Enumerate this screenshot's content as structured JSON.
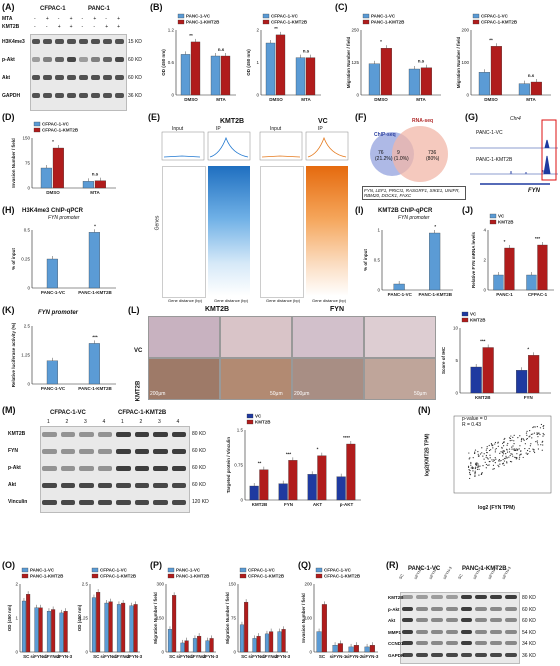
{
  "colors": {
    "blue": "#5b9bd5",
    "red": "#b01c1c",
    "orange": "#e57a1e",
    "navy": "#1f3aa0"
  },
  "panels": {
    "A": "(A)",
    "B": "(B)",
    "C": "(C)",
    "D": "(D)",
    "E": "(E)",
    "F": "(F)",
    "G": "(G)",
    "H": "(H)",
    "I": "(I)",
    "J": "(J)",
    "K": "(K)",
    "L": "(L)",
    "M": "(M)",
    "N": "(N)",
    "O": "(O)",
    "P": "(P)",
    "Q": "(Q)",
    "R": "(R)"
  },
  "A": {
    "cell1": "CFPAC-1",
    "cell2": "PANC-1",
    "mta": "MTA",
    "kmt2b": "KMT2B",
    "signs": [
      "-",
      "+",
      "-",
      "+",
      "-",
      "+",
      "-",
      "+"
    ],
    "signs2": [
      "-",
      "-",
      "+",
      "+",
      "-",
      "-",
      "+",
      "+"
    ],
    "rows": [
      "H3K4me3",
      "p-Akt",
      "Akt",
      "GAPDH"
    ],
    "kd": [
      "15 KD",
      "60 KD",
      "60 KD",
      "36 KD"
    ]
  },
  "B": {
    "leg1": "PANC-1-VC",
    "leg2": "PANC-1-KMT2B",
    "leg3": "CFPAC-1-VC",
    "leg4": "CFPAC-1-KMT2B",
    "ylabel": "OD (450 nm)",
    "x": [
      "DMSO",
      "MTA"
    ],
    "sig": [
      "**",
      "n.s",
      "**",
      "n.s"
    ]
  },
  "C": {
    "leg1": "PANC-1-VC",
    "leg2": "PANC-1-KMT2B",
    "leg3": "CFPAC-1-VC",
    "leg4": "CFPAC-1-KMT2B",
    "ylabel": "Migration Number / field",
    "x": [
      "DMSO",
      "MTA"
    ],
    "sig": [
      "*",
      "n.s",
      "**",
      "n.s"
    ]
  },
  "D": {
    "leg1": "CFPAC-1-VC",
    "leg2": "CFPAC-1-KMT2B",
    "ylabel": "Invasion Number / field",
    "x": [
      "DMSO",
      "MTA"
    ],
    "sig": [
      "*",
      "n.s"
    ]
  },
  "E": {
    "t1": "KMT2B",
    "t2": "VC",
    "input": "Input",
    "ip": "IP",
    "ylab": "Genes",
    "xt": [
      "-1.0",
      "TSS",
      "1.0kb"
    ],
    "foot": "Gene distance (bp)"
  },
  "F": {
    "chip": "ChIP-seq",
    "rna": "RNA-seq",
    "n1": "76",
    "p1": "(21.2%)",
    "n2": "9",
    "p2": "(1.0%)",
    "n3": "736",
    "p3": "(80%)",
    "genes": "FYN, LEF1, PRICI1, RASGRF1, SIKE1, UNIFR, RBM20, DOCK1, FAXC"
  },
  "G": {
    "top": "Chr4",
    "r1": "PANC-1-VC",
    "r2": "PANC-1-KMT2B",
    "gene": "FYN"
  },
  "H": {
    "title": "H3K4me3 ChIP-qPCR",
    "sub": "FYN promoter",
    "ylabel": "% of input",
    "x": [
      "PANC-1-VC",
      "PANC-1-KMT2B"
    ],
    "sig": "*"
  },
  "I": {
    "title": "KMT2B ChIP-qPCR",
    "sub": "FYN promoter",
    "ylabel": "% of input",
    "x": [
      "PANC-1-VC",
      "PANC-1-KMT2B"
    ],
    "sig": "*"
  },
  "J": {
    "leg1": "VC",
    "leg2": "KMT2B",
    "ylabel": "Relative FYN mRNA levels",
    "x": [
      "PANC-1",
      "CFPAC-1"
    ],
    "sig": [
      "*",
      "***"
    ]
  },
  "K": {
    "title": "FYN promoter",
    "ylabel": "Relative luciferase activity (%)",
    "x": [
      "PANC-1-VC",
      "PANC-1-KMT2B"
    ],
    "sig": "***"
  },
  "L": {
    "t1": "KMT2B",
    "t2": "FYN",
    "r1": "VC",
    "r2": "KMT2B",
    "s1": "200μm",
    "s2": "50μm",
    "s3": "200μm",
    "s4": "50μm",
    "leg1": "VC",
    "leg2": "KMT2B",
    "ylabel": "Score of IHC",
    "x": [
      "KMT2B",
      "FYN"
    ],
    "sig": [
      "***",
      "*"
    ]
  },
  "M": {
    "g1": "CFPAC-1-VC",
    "g2": "CFPAC-1-KMT2B",
    "lanes": [
      "1",
      "2",
      "3",
      "4",
      "1",
      "2",
      "3",
      "4"
    ],
    "rows": [
      "KMT2B",
      "FYN",
      "p-Akt",
      "Akt",
      "Vinculin"
    ],
    "kd": [
      "80 KD",
      "60 KD",
      "60 KD",
      "60 KD",
      "120 KD"
    ],
    "leg1": "VC",
    "leg2": "KMT2B",
    "ylabel": "Targeted protein / Vinculin",
    "x": [
      "KMT2B",
      "FYN",
      "AKT",
      "p-AKT"
    ],
    "sig": [
      "**",
      "***",
      "*",
      "****"
    ]
  },
  "N": {
    "p": "p-value = 0",
    "r": "R = 0.43",
    "ylabel": "log2(KMT2B TPM)",
    "xlabel": "log2 (FYN TPM)"
  },
  "O": {
    "leg1": "PANC-1-VC",
    "leg2": "PANC-1-KMT2B",
    "leg3": "CFPAC-1-VC",
    "leg4": "CFPAC-1-KMT2B",
    "ylabel": "OD (450 nm)",
    "x": [
      "SC",
      "siFYN-1",
      "siFYN-2",
      "siFYN-3"
    ]
  },
  "P": {
    "leg1": "PANC-1-VC",
    "leg2": "PANC-1-KMT2B",
    "leg3": "CFPAC-1-VC",
    "leg4": "CFPAC-1-KMT2B",
    "ylabel": "Migration Number / field",
    "x": [
      "SC",
      "siFYN-1",
      "siFYN-2",
      "siFYN-3"
    ]
  },
  "Q": {
    "leg1": "CFPAC-1-VC",
    "leg2": "CFPAC-1-KMT2B",
    "ylabel": "Invasion Number / field",
    "x": [
      "SC",
      "siFYN-1",
      "siFYN-2",
      "siFYN-3"
    ]
  },
  "R": {
    "g1": "PANC-1-VC",
    "g2": "PANC-1-KMT2B",
    "lanes": [
      "SC",
      "siFYN-1",
      "siFYN-2",
      "siFYN-3",
      "SC",
      "siFYN-1",
      "siFYN-2",
      "siFYN-3"
    ],
    "rows": [
      "KMT2B",
      "p-Akt",
      "Akt",
      "MMP1",
      "CCND1",
      "GAPDH"
    ],
    "kd": [
      "80 KD",
      "60 KD",
      "60 KD",
      "54 KD",
      "34 KD",
      "36 KD"
    ]
  },
  "chart_data": [
    {
      "type": "bar",
      "panel": "B-left",
      "categories": [
        "DMSO",
        "MTA"
      ],
      "series": [
        {
          "name": "PANC-1-VC",
          "values": [
            0.75,
            0.72
          ]
        },
        {
          "name": "PANC-1-KMT2B",
          "values": [
            0.98,
            0.72
          ]
        }
      ],
      "ylim": [
        0,
        1.2
      ]
    },
    {
      "type": "bar",
      "panel": "B-right",
      "categories": [
        "DMSO",
        "MTA"
      ],
      "series": [
        {
          "name": "CFPAC-1-VC",
          "values": [
            1.6,
            1.15
          ]
        },
        {
          "name": "CFPAC-1-KMT2B",
          "values": [
            1.85,
            1.15
          ]
        }
      ],
      "ylim": [
        0,
        2.0
      ]
    },
    {
      "type": "bar",
      "panel": "C-left",
      "categories": [
        "DMSO",
        "MTA"
      ],
      "series": [
        {
          "name": "PANC-1-VC",
          "values": [
            120,
            100
          ]
        },
        {
          "name": "PANC-1-KMT2B",
          "values": [
            180,
            105
          ]
        }
      ],
      "ylim": [
        0,
        250
      ]
    },
    {
      "type": "bar",
      "panel": "C-right",
      "categories": [
        "DMSO",
        "MTA"
      ],
      "series": [
        {
          "name": "CFPAC-1-VC",
          "values": [
            70,
            35
          ]
        },
        {
          "name": "CFPAC-1-KMT2B",
          "values": [
            150,
            40
          ]
        }
      ],
      "ylim": [
        0,
        200
      ]
    },
    {
      "type": "bar",
      "panel": "D",
      "categories": [
        "DMSO",
        "MTA"
      ],
      "series": [
        {
          "name": "CFPAC-1-VC",
          "values": [
            60,
            20
          ]
        },
        {
          "name": "CFPAC-1-KMT2B",
          "values": [
            120,
            22
          ]
        }
      ],
      "ylim": [
        0,
        150
      ]
    },
    {
      "type": "bar",
      "panel": "H",
      "categories": [
        "PANC-1-VC",
        "PANC-1-KMT2B"
      ],
      "values": [
        0.25,
        0.48
      ],
      "ylim": [
        0,
        0.5
      ]
    },
    {
      "type": "bar",
      "panel": "I",
      "categories": [
        "PANC-1-VC",
        "PANC-1-KMT2B"
      ],
      "values": [
        0.1,
        0.95
      ],
      "ylim": [
        0,
        1.0
      ]
    },
    {
      "type": "bar",
      "panel": "J",
      "categories": [
        "PANC-1",
        "CFPAC-1"
      ],
      "series": [
        {
          "name": "VC",
          "values": [
            1.0,
            1.0
          ]
        },
        {
          "name": "KMT2B",
          "values": [
            2.8,
            3.0
          ]
        }
      ],
      "ylim": [
        0,
        4
      ]
    },
    {
      "type": "bar",
      "panel": "K",
      "categories": [
        "PANC-1-VC",
        "PANC-1-KMT2B"
      ],
      "values": [
        1.0,
        1.75
      ],
      "ylim": [
        0,
        2.5
      ]
    },
    {
      "type": "bar",
      "panel": "L",
      "categories": [
        "KMT2B",
        "FYN"
      ],
      "series": [
        {
          "name": "VC",
          "values": [
            4.0,
            3.5
          ]
        },
        {
          "name": "KMT2B",
          "values": [
            7.0,
            5.8
          ]
        }
      ],
      "ylim": [
        0,
        10
      ]
    },
    {
      "type": "bar",
      "panel": "M",
      "categories": [
        "KMT2B",
        "FYN",
        "AKT",
        "p-AKT"
      ],
      "series": [
        {
          "name": "VC",
          "values": [
            0.3,
            0.35,
            0.55,
            0.5
          ]
        },
        {
          "name": "KMT2B",
          "values": [
            0.65,
            0.85,
            0.95,
            1.2
          ]
        }
      ],
      "ylim": [
        0,
        1.5
      ]
    },
    {
      "type": "bar",
      "panel": "O-left",
      "categories": [
        "SC",
        "siFYN-1",
        "siFYN-2",
        "siFYN-3"
      ],
      "series": [
        {
          "name": "PANC-1-VC",
          "values": [
            1.5,
            1.3,
            1.2,
            1.15
          ]
        },
        {
          "name": "PANC-1-KMT2B",
          "values": [
            1.7,
            1.3,
            1.25,
            1.2
          ]
        }
      ],
      "ylim": [
        0,
        2.0
      ]
    },
    {
      "type": "bar",
      "panel": "O-right",
      "categories": [
        "SC",
        "siFYN-1",
        "siFYN-2",
        "siFYN-3"
      ],
      "series": [
        {
          "name": "CFPAC-1-VC",
          "values": [
            2.0,
            1.8,
            1.75,
            1.7
          ]
        },
        {
          "name": "CFPAC-1-KMT2B",
          "values": [
            2.2,
            1.85,
            1.8,
            1.75
          ]
        }
      ],
      "ylim": [
        0,
        2.5
      ]
    },
    {
      "type": "bar",
      "panel": "P-left",
      "categories": [
        "SC",
        "siFYN-1",
        "siFYN-2",
        "siFYN-3"
      ],
      "series": [
        {
          "name": "PANC-1-VC",
          "values": [
            100,
            40,
            60,
            50
          ]
        },
        {
          "name": "PANC-1-KMT2B",
          "values": [
            250,
            50,
            70,
            60
          ]
        }
      ],
      "ylim": [
        0,
        300
      ]
    },
    {
      "type": "bar",
      "panel": "P-right",
      "categories": [
        "SC",
        "siFYN-1",
        "siFYN-2",
        "siFYN-3"
      ],
      "series": [
        {
          "name": "CFPAC-1-VC",
          "values": [
            60,
            30,
            40,
            45
          ]
        },
        {
          "name": "CFPAC-1-KMT2B",
          "values": [
            110,
            35,
            45,
            50
          ]
        }
      ],
      "ylim": [
        0,
        150
      ]
    },
    {
      "type": "bar",
      "panel": "Q",
      "categories": [
        "SC",
        "siFYN-1",
        "siFYN-2",
        "siFYN-3"
      ],
      "series": [
        {
          "name": "CFPAC-1-VC",
          "values": [
            60,
            20,
            15,
            15
          ]
        },
        {
          "name": "CFPAC-1-KMT2B",
          "values": [
            140,
            25,
            20,
            20
          ]
        }
      ],
      "ylim": [
        0,
        200
      ]
    }
  ]
}
